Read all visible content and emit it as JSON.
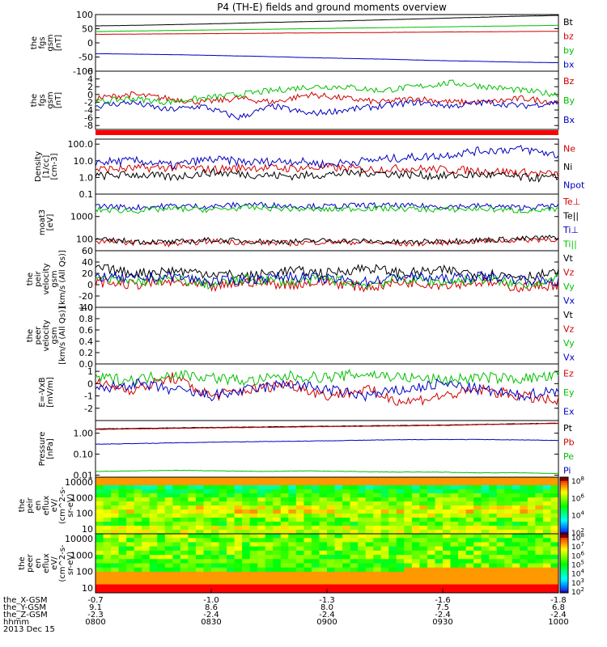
{
  "chart_data": {
    "title": "P4 (TH-E) fields and ground moments overview",
    "type": "line",
    "time_axis": {
      "tick_labels": [
        "0800",
        "0830",
        "0900",
        "0930",
        "1000"
      ],
      "rows": [
        {
          "label": "the_X-GSM",
          "values": [
            "-0.7",
            "-1.0",
            "-1.3",
            "-1.6",
            "-1.8"
          ]
        },
        {
          "label": "the_Y-GSM",
          "values": [
            "9.1",
            "8.6",
            "8.0",
            "7.5",
            "6.8"
          ]
        },
        {
          "label": "the_Z-GSM",
          "values": [
            "-2.3",
            "-2.4",
            "-2.4",
            "-2.4",
            "-2.4"
          ]
        },
        {
          "label": "hhmm",
          "values": [
            "0800",
            "0830",
            "0900",
            "0930",
            "1000"
          ]
        }
      ],
      "date": "2013 Dec 15"
    },
    "panels": [
      {
        "id": "fgs1",
        "ylabel": [
          "the",
          "fgs",
          "gsm",
          "[nT]"
        ],
        "ylim": [
          -100,
          100
        ],
        "log": false,
        "ticks": [
          "100",
          "50",
          "0",
          "-50",
          "-100"
        ],
        "tickvals": [
          100,
          50,
          0,
          -50,
          -100
        ],
        "series": [
          {
            "name": "Bt",
            "color": "#000000",
            "values": [
              60,
              62,
              65,
              68,
              72,
              75,
              78,
              82,
              86,
              90,
              94,
              97
            ]
          },
          {
            "name": "bz",
            "color": "#d00000",
            "values": [
              30,
              31,
              32,
              33,
              34,
              35,
              36,
              37,
              38,
              39,
              40,
              41
            ]
          },
          {
            "name": "by",
            "color": "#00c000",
            "values": [
              40,
              42,
              44,
              46,
              48,
              50,
              52,
              54,
              56,
              58,
              60,
              62
            ]
          },
          {
            "name": "bx",
            "color": "#0000c0",
            "values": [
              -38,
              -40,
              -42,
              -45,
              -48,
              -52,
              -55,
              -58,
              -62,
              -65,
              -68,
              -70
            ]
          }
        ]
      },
      {
        "id": "fgs2",
        "ylabel": [
          "the",
          "fgs",
          "gsm",
          "[nT]"
        ],
        "ylim": [
          -9,
          6
        ],
        "log": false,
        "ticks": [
          "6",
          "4",
          "2",
          "0",
          "-2",
          "-4",
          "-6",
          "-8"
        ],
        "tickvals": [
          6,
          4,
          2,
          0,
          -2,
          -4,
          -6,
          -8
        ],
        "series": [
          {
            "name": "Bz",
            "color": "#d00000",
            "values": [
              -1,
              0,
              -1,
              -2,
              -1,
              -2,
              0,
              -1,
              -2,
              -1,
              -2,
              -2,
              -1,
              -2
            ]
          },
          {
            "name": "By",
            "color": "#00c000",
            "values": [
              -2,
              -1,
              -2,
              -1,
              0,
              1,
              2,
              2,
              1,
              2,
              3,
              2,
              1,
              0
            ]
          },
          {
            "name": "Bx",
            "color": "#0000c0",
            "values": [
              -3,
              -2,
              -4,
              -3,
              -6,
              -3,
              -5,
              -4,
              -3,
              -2,
              -3,
              -2,
              -3,
              -2
            ]
          }
        ]
      },
      {
        "id": "bar",
        "type": "bar",
        "color": "#ff0000"
      },
      {
        "id": "density",
        "ylabel": [
          "Density",
          "[1/cc]",
          "[cm-3]"
        ],
        "ylim": [
          0.1,
          200
        ],
        "log": true,
        "ticks": [
          "100.0",
          "10.0",
          "1.0",
          "0.1"
        ],
        "tickvals": [
          100,
          10,
          1,
          0.1
        ],
        "series": [
          {
            "name": "Ne",
            "color": "#d00000",
            "values": [
              3,
              3.5,
              4,
              3,
              4,
              3.5,
              4,
              3,
              3.5,
              3,
              2.5,
              2,
              1.5
            ]
          },
          {
            "name": "Ni",
            "color": "#000000",
            "values": [
              1.2,
              1.5,
              1,
              2,
              1.5,
              1.2,
              1.5,
              2,
              1.5,
              1.2,
              1.5,
              1,
              0.9
            ]
          },
          {
            "name": "Npot",
            "color": "#0000c0",
            "values": [
              8,
              10,
              5,
              12,
              8,
              10,
              6,
              10,
              15,
              20,
              40,
              50,
              20
            ]
          }
        ]
      },
      {
        "id": "temp",
        "ylabel": [
          "moat3",
          "[eV]"
        ],
        "ylim": [
          30,
          10000
        ],
        "log": true,
        "ticks": [
          "1000",
          "100"
        ],
        "tickvals": [
          1000,
          100
        ],
        "series": [
          {
            "name": "Te⊥",
            "color": "#d00000",
            "values": [
              80,
              70,
              60,
              80,
              70,
              65,
              75,
              70,
              60,
              70,
              80,
              90,
              100
            ]
          },
          {
            "name": "Te||",
            "color": "#000000",
            "values": [
              90,
              80,
              70,
              90,
              80,
              75,
              85,
              80,
              70,
              80,
              90,
              100,
              120
            ]
          },
          {
            "name": "Ti⊥",
            "color": "#0000c0",
            "values": [
              3000,
              2500,
              3000,
              2800,
              3500,
              3000,
              2800,
              3200,
              3000,
              2800,
              3000,
              2500,
              3000
            ]
          },
          {
            "name": "Ti||",
            "color": "#00c000",
            "values": [
              2000,
              1800,
              2200,
              2000,
              2500,
              2200,
              2000,
              2300,
              2200,
              2000,
              2200,
              1800,
              2000
            ]
          }
        ]
      },
      {
        "id": "vel1",
        "ylabel": [
          "the",
          "peir",
          "velocity",
          "gsm",
          "[km/s (All Qs)]"
        ],
        "ylim": [
          -40,
          60
        ],
        "log": false,
        "ticks": [
          "60",
          "40",
          "20",
          "0",
          "-20",
          "-40"
        ],
        "tickvals": [
          60,
          40,
          20,
          0,
          -20,
          -40
        ],
        "series": [
          {
            "name": "Vt",
            "color": "#000000",
            "values": [
              30,
              20,
              25,
              20,
              15,
              25,
              20,
              30,
              20,
              25,
              20,
              15,
              20
            ]
          },
          {
            "name": "Vz",
            "color": "#d00000",
            "values": [
              5,
              0,
              5,
              -5,
              5,
              0,
              5,
              -5,
              5,
              0,
              5,
              -5,
              0
            ]
          },
          {
            "name": "Vy",
            "color": "#00c000",
            "values": [
              10,
              5,
              10,
              0,
              10,
              5,
              10,
              0,
              10,
              5,
              10,
              0,
              10
            ]
          },
          {
            "name": "Vx",
            "color": "#0000c0",
            "values": [
              15,
              10,
              15,
              5,
              10,
              15,
              10,
              5,
              15,
              10,
              15,
              10,
              5
            ]
          }
        ]
      },
      {
        "id": "vel2",
        "ylabel": [
          "the",
          "peer",
          "velocity",
          "gsm",
          "[km/s (All Qs)]"
        ],
        "ylim": [
          0,
          1
        ],
        "log": false,
        "ticks": [
          "1.0",
          "0.8",
          "0.6",
          "0.4",
          "0.2",
          "0.0"
        ],
        "tickvals": [
          1,
          0.8,
          0.6,
          0.4,
          0.2,
          0
        ],
        "series": [
          {
            "name": "Vt",
            "color": "#000000",
            "values": []
          },
          {
            "name": "Vz",
            "color": "#d00000",
            "values": []
          },
          {
            "name": "Vy",
            "color": "#00c000",
            "values": []
          },
          {
            "name": "Vx",
            "color": "#0000c0",
            "values": []
          }
        ]
      },
      {
        "id": "efield",
        "ylabel": [
          "E=-VxB",
          "[mV/m]"
        ],
        "ylim": [
          -3,
          1.6
        ],
        "log": false,
        "ticks": [
          "1",
          "0",
          "-1",
          "-2"
        ],
        "tickvals": [
          1,
          0,
          -1,
          -2
        ],
        "series": [
          {
            "name": "Ez",
            "color": "#d00000",
            "values": [
              0,
              -0.5,
              0.5,
              -1,
              -0.5,
              0,
              -1,
              -0.5,
              -1.5,
              -1,
              -0.5,
              -1,
              -1.5
            ]
          },
          {
            "name": "Ey",
            "color": "#00c000",
            "values": [
              0.5,
              0.3,
              0.8,
              0.5,
              0.2,
              0.6,
              0.5,
              0.8,
              0.5,
              0.3,
              0.5,
              0.4,
              0.6
            ]
          },
          {
            "name": "Ex",
            "color": "#0000c0",
            "values": [
              -0.5,
              0,
              -0.5,
              -1,
              -0.5,
              0,
              -0.5,
              -1,
              -0.5,
              0,
              -0.5,
              -1,
              -0.5
            ]
          }
        ]
      },
      {
        "id": "pressure",
        "ylabel": [
          "Pressure",
          "[nPa]"
        ],
        "ylim": [
          0.008,
          4
        ],
        "log": true,
        "ticks": [
          "1.00",
          "0.10",
          "0.01"
        ],
        "tickvals": [
          1,
          0.1,
          0.01
        ],
        "series": [
          {
            "name": "Pt",
            "color": "#000000",
            "values": [
              1.6,
              1.7,
              1.8,
              1.9,
              2.0,
              2.1,
              2.2,
              2.3,
              2.4,
              2.6,
              2.8,
              3.0
            ]
          },
          {
            "name": "Pb",
            "color": "#d00000",
            "values": [
              1.5,
              1.6,
              1.7,
              1.8,
              1.9,
              2.0,
              2.1,
              2.2,
              2.3,
              2.5,
              2.7,
              2.9
            ]
          },
          {
            "name": "Pe",
            "color": "#00c000",
            "values": [
              0.015,
              0.016,
              0.017,
              0.016,
              0.015,
              0.016,
              0.015,
              0.014,
              0.014,
              0.013,
              0.013,
              0.012
            ]
          },
          {
            "name": "Pi",
            "color": "#0000c0",
            "values": [
              0.3,
              0.32,
              0.35,
              0.38,
              0.4,
              0.42,
              0.45,
              0.48,
              0.5,
              0.5,
              0.48,
              0.45
            ]
          }
        ]
      },
      {
        "id": "spec_ion",
        "type": "heatmap",
        "ylabel": [
          "the",
          "peir",
          "en",
          "eflux",
          "eV/",
          "(cm^2-s-",
          "sr-eV)"
        ],
        "ylim": [
          5,
          20000
        ],
        "log": true,
        "ticks": [
          "10000",
          "1000",
          "100",
          "10"
        ],
        "tickvals": [
          10000,
          1000,
          100,
          10
        ],
        "colorbar_ticks": [
          "10^8",
          "10^6",
          "10^4",
          "10^2"
        ]
      },
      {
        "id": "spec_el",
        "type": "heatmap",
        "ylabel": [
          "the",
          "peer",
          "en",
          "eflux",
          "eV/",
          "(cm^2-s-",
          "sr-eV)"
        ],
        "ylim": [
          5,
          20000
        ],
        "log": true,
        "ticks": [
          "10000",
          "1000",
          "100",
          "10"
        ],
        "tickvals": [
          10000,
          1000,
          100,
          10
        ],
        "colorbar_ticks": [
          "10^8",
          "10^7",
          "10^6",
          "10^5",
          "10^4",
          "10^3",
          "10^2"
        ]
      }
    ]
  }
}
